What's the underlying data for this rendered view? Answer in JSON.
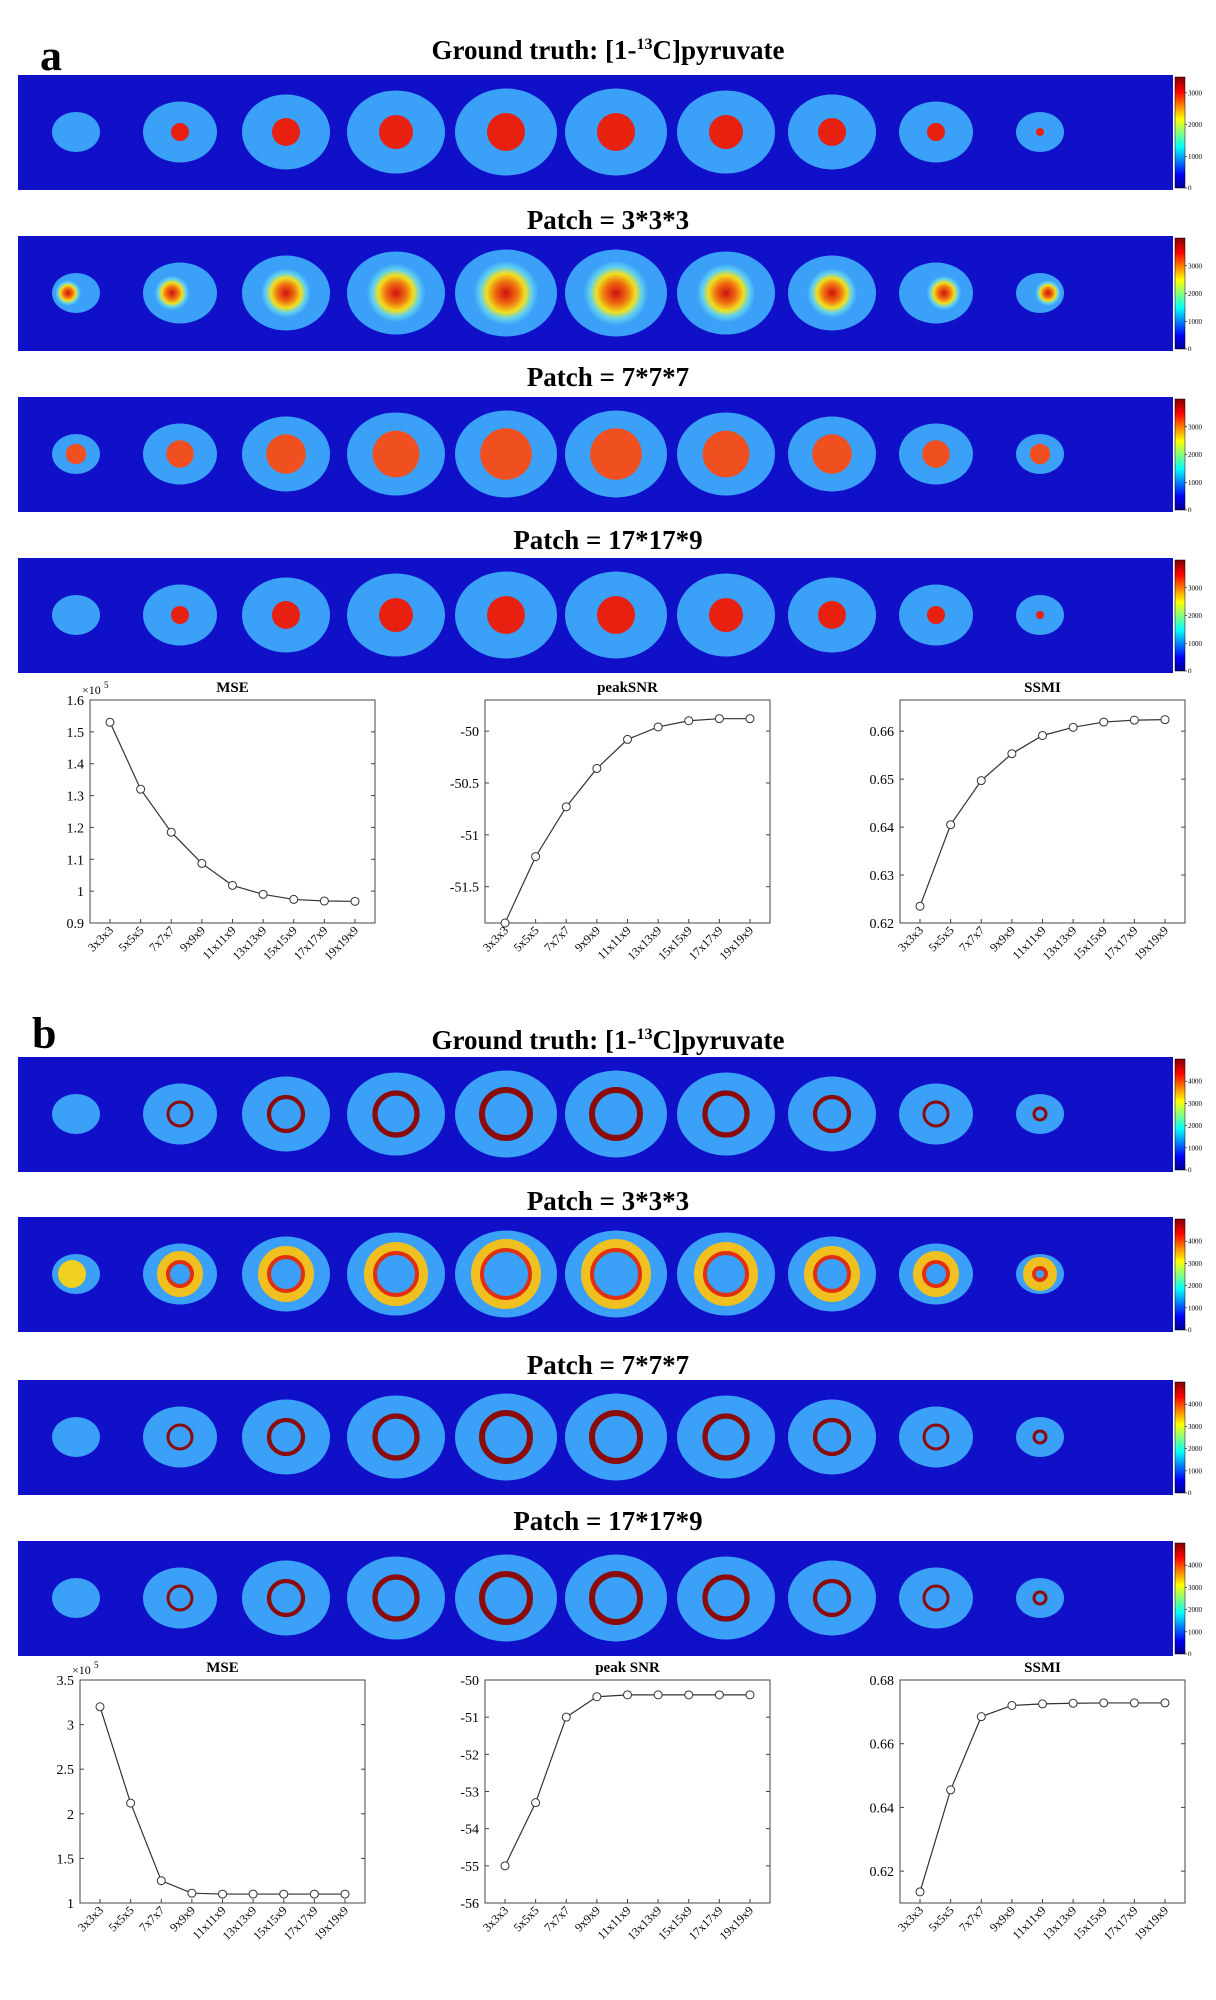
{
  "panels": [
    {
      "letter": "a",
      "rows": [
        {
          "prefix": "Ground truth: [1-",
          "sup": "13",
          "suffix": "C]pyruvate",
          "colorbar": {
            "max": 3500,
            "ticks": [
              "3000",
              "2000",
              "1000",
              "0"
            ]
          }
        },
        {
          "title": "Patch = 3*3*3",
          "colorbar": {
            "max": 4000,
            "ticks": [
              "3000",
              "2000",
              "1000",
              "0"
            ]
          }
        },
        {
          "title": "Patch = 7*7*7",
          "colorbar": {
            "max": 4000,
            "ticks": [
              "3000",
              "2000",
              "1000",
              "0"
            ]
          }
        },
        {
          "title": "Patch = 17*17*9",
          "colorbar": {
            "max": 4000,
            "ticks": [
              "3000",
              "2000",
              "1000",
              "0"
            ]
          }
        }
      ]
    },
    {
      "letter": "b",
      "rows": [
        {
          "prefix": "Ground truth: [1-",
          "sup": "13",
          "suffix": "C]pyruvate",
          "colorbar": {
            "max": 5000,
            "ticks": [
              "4000",
              "3000",
              "2000",
              "1000",
              "0"
            ]
          }
        },
        {
          "title": "Patch = 3*3*3",
          "colorbar": {
            "max": 5000,
            "ticks": [
              "4000",
              "3000",
              "2000",
              "1000",
              "0"
            ]
          }
        },
        {
          "title": "Patch = 7*7*7",
          "colorbar": {
            "max": 5000,
            "ticks": [
              "4000",
              "3000",
              "2000",
              "1000",
              "0"
            ]
          }
        },
        {
          "title": "Patch = 17*17*9",
          "colorbar": {
            "max": 5000,
            "ticks": [
              "4000",
              "3000",
              "2000",
              "1000",
              "0"
            ]
          }
        }
      ]
    }
  ],
  "colors": {
    "background": "#1010c8",
    "phantom": "#3aa0f8",
    "lesion": "#e82010",
    "ring": "#8b0a0a",
    "line": "#333333"
  },
  "chart_data": [
    {
      "type": "line",
      "panel": "a",
      "title": "MSE",
      "multiplier": "×10",
      "multiplier_exp": "5",
      "categories": [
        "3x3x3",
        "5x5x5",
        "7x7x7",
        "9x9x9",
        "11x11x9",
        "13x13x9",
        "15x15x9",
        "17x17x9",
        "19x19x9"
      ],
      "values": [
        1.53,
        1.32,
        1.185,
        1.087,
        1.018,
        0.99,
        0.974,
        0.969,
        0.968
      ],
      "ylim": [
        0.9,
        1.6
      ],
      "yticks": [
        0.9,
        1.0,
        1.1,
        1.2,
        1.3,
        1.4,
        1.5,
        1.6
      ],
      "ytick_labels": [
        "0.9",
        "1",
        "1.1",
        "1.2",
        "1.3",
        "1.4",
        "1.5",
        "1.6"
      ]
    },
    {
      "type": "line",
      "panel": "a",
      "title": "peakSNR",
      "categories": [
        "3x3x3",
        "5x5x5",
        "7x7x7",
        "9x9x9",
        "11x11x9",
        "13x13x9",
        "15x15x9",
        "17x17x9",
        "19x19x9"
      ],
      "values": [
        -51.85,
        -51.21,
        -50.73,
        -50.36,
        -50.08,
        -49.96,
        -49.9,
        -49.88,
        -49.88
      ],
      "ylim": [
        -51.85,
        -49.7
      ],
      "yticks": [
        -51.5,
        -51.0,
        -50.5,
        -50.0
      ],
      "ytick_labels": [
        "-51.5",
        "-51",
        "-50.5",
        "-50"
      ]
    },
    {
      "type": "line",
      "panel": "a",
      "title": "SSMI",
      "categories": [
        "3x3x3",
        "5x5x5",
        "7x7x7",
        "9x9x9",
        "11x11x9",
        "13x13x9",
        "15x15x9",
        "17x17x9",
        "19x19x9"
      ],
      "values": [
        0.6235,
        0.6405,
        0.6497,
        0.6553,
        0.6591,
        0.6608,
        0.6619,
        0.6623,
        0.6624
      ],
      "ylim": [
        0.62,
        0.6665
      ],
      "yticks": [
        0.62,
        0.63,
        0.64,
        0.65,
        0.66
      ],
      "ytick_labels": [
        "0.62",
        "0.63",
        "0.64",
        "0.65",
        "0.66"
      ]
    },
    {
      "type": "line",
      "panel": "b",
      "title": "MSE",
      "multiplier": "×10",
      "multiplier_exp": "5",
      "categories": [
        "3x3x3",
        "5x5x5",
        "7x7x7",
        "9x9x9",
        "11x11x9",
        "13x13x9",
        "15x15x9",
        "17x17x9",
        "19x19x9"
      ],
      "values": [
        3.2,
        2.12,
        1.25,
        1.11,
        1.1,
        1.1,
        1.1,
        1.1,
        1.1
      ],
      "ylim": [
        1.0,
        3.5
      ],
      "yticks": [
        1.0,
        1.5,
        2.0,
        2.5,
        3.0,
        3.5
      ],
      "ytick_labels": [
        "1",
        "1.5",
        "2",
        "2.5",
        "3",
        "3.5"
      ]
    },
    {
      "type": "line",
      "panel": "b",
      "title": "peak SNR",
      "categories": [
        "3x3x3",
        "5x5x5",
        "7x7x7",
        "9x9x9",
        "11x11x9",
        "13x13x9",
        "15x15x9",
        "17x17x9",
        "19x19x9"
      ],
      "values": [
        -55.0,
        -53.3,
        -51.0,
        -50.45,
        -50.4,
        -50.4,
        -50.4,
        -50.4,
        -50.4
      ],
      "ylim": [
        -56,
        -50
      ],
      "yticks": [
        -56,
        -55,
        -54,
        -53,
        -52,
        -51,
        -50
      ],
      "ytick_labels": [
        "-56",
        "-55",
        "-54",
        "-53",
        "-52",
        "-51",
        "-50"
      ]
    },
    {
      "type": "line",
      "panel": "b",
      "title": "SSMI",
      "categories": [
        "3x3x3",
        "5x5x5",
        "7x7x7",
        "9x9x9",
        "11x11x9",
        "13x13x9",
        "15x15x9",
        "17x17x9",
        "19x19x9"
      ],
      "values": [
        0.6135,
        0.6455,
        0.6685,
        0.672,
        0.6725,
        0.6727,
        0.6728,
        0.6728,
        0.6728
      ],
      "ylim": [
        0.61,
        0.68
      ],
      "yticks": [
        0.62,
        0.64,
        0.66,
        0.68
      ],
      "ytick_labels": [
        "0.62",
        "0.64",
        "0.66",
        "0.68"
      ]
    }
  ]
}
